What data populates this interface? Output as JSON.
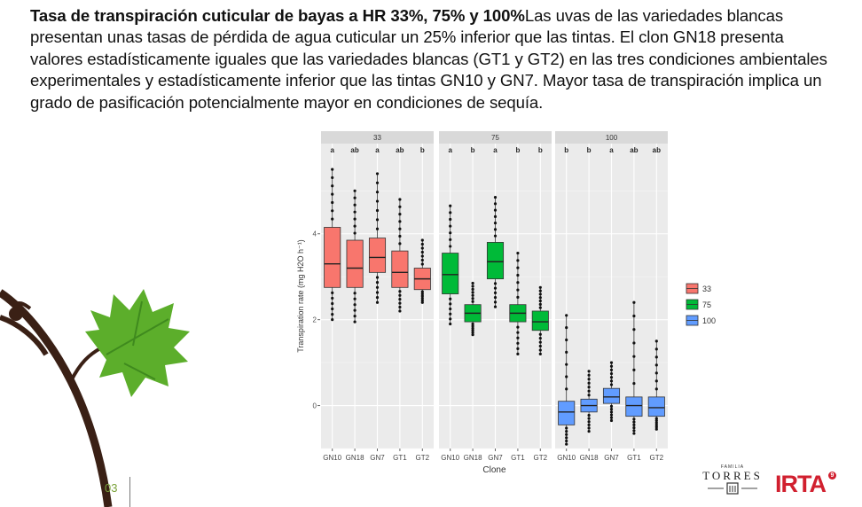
{
  "slide": {
    "title_bold": "Tasa de transpiración cuticular de bayas a HR 33%, 75% y 100%",
    "body": "Las uvas de las variedades blancas presentan unas tasas de pérdida de agua cuticular un 25% inferior que las tintas. El clon GN18 presenta valores estadísticamente iguales que las variedades blancas (GT1 y GT2) en las tres condiciones ambientales experimentales y estadísticamente inferior que las tintas GN10 y GN7. Mayor tasa de transpiración implica un grado de pasificación potencialmente mayor en condiciones de sequía.",
    "slide_number": "03"
  },
  "logos": {
    "torres_small_top": "FAMILIA",
    "torres": "TORRES",
    "irta": "IRTA",
    "irta_superscript": "9"
  },
  "chart_data": {
    "type": "box",
    "xlabel": "Clone",
    "ylabel": "Transpiration rate (mg H2O h⁻¹)",
    "categories": [
      "GN10",
      "GN18",
      "GN7",
      "GT1",
      "GT2"
    ],
    "yticks": [
      0,
      2,
      4
    ],
    "ylim": [
      -1.0,
      6.1
    ],
    "grid": true,
    "legend": {
      "placement": "right",
      "entries": [
        "33",
        "75",
        "100"
      ]
    },
    "colors": {
      "33": "#f8766d",
      "75": "#00ba38",
      "100": "#619cff"
    },
    "panels": [
      {
        "label": "33",
        "letters": [
          "a",
          "ab",
          "a",
          "ab",
          "b"
        ],
        "boxes": [
          {
            "clone": "GN10",
            "min": 2.0,
            "q1": 2.75,
            "median": 3.3,
            "q3": 4.15,
            "max": 5.5
          },
          {
            "clone": "GN18",
            "min": 1.95,
            "q1": 2.75,
            "median": 3.2,
            "q3": 3.85,
            "max": 5.0
          },
          {
            "clone": "GN7",
            "min": 2.4,
            "q1": 3.1,
            "median": 3.45,
            "q3": 3.9,
            "max": 5.4
          },
          {
            "clone": "GT1",
            "min": 2.2,
            "q1": 2.75,
            "median": 3.1,
            "q3": 3.6,
            "max": 4.8
          },
          {
            "clone": "GT2",
            "min": 2.4,
            "q1": 2.7,
            "median": 2.95,
            "q3": 3.2,
            "max": 3.85
          }
        ]
      },
      {
        "label": "75",
        "letters": [
          "a",
          "b",
          "a",
          "b",
          "b"
        ],
        "boxes": [
          {
            "clone": "GN10",
            "min": 1.9,
            "q1": 2.6,
            "median": 3.05,
            "q3": 3.55,
            "max": 4.65
          },
          {
            "clone": "GN18",
            "min": 1.65,
            "q1": 1.95,
            "median": 2.15,
            "q3": 2.35,
            "max": 2.85
          },
          {
            "clone": "GN7",
            "min": 2.3,
            "q1": 2.95,
            "median": 3.35,
            "q3": 3.8,
            "max": 4.85
          },
          {
            "clone": "GT1",
            "min": 1.2,
            "q1": 1.95,
            "median": 2.15,
            "q3": 2.35,
            "max": 3.55
          },
          {
            "clone": "GT2",
            "min": 1.2,
            "q1": 1.75,
            "median": 1.95,
            "q3": 2.2,
            "max": 2.75
          }
        ]
      },
      {
        "label": "100",
        "letters": [
          "b",
          "b",
          "a",
          "ab",
          "ab"
        ],
        "boxes": [
          {
            "clone": "GN10",
            "min": -0.9,
            "q1": -0.45,
            "median": -0.15,
            "q3": 0.1,
            "max": 2.1
          },
          {
            "clone": "GN18",
            "min": -0.6,
            "q1": -0.15,
            "median": 0.0,
            "q3": 0.15,
            "max": 0.8
          },
          {
            "clone": "GN7",
            "min": -0.35,
            "q1": 0.05,
            "median": 0.2,
            "q3": 0.4,
            "max": 1.0
          },
          {
            "clone": "GT1",
            "min": -0.65,
            "q1": -0.25,
            "median": 0.0,
            "q3": 0.2,
            "max": 2.4
          },
          {
            "clone": "GT2",
            "min": -0.55,
            "q1": -0.25,
            "median": -0.05,
            "q3": 0.2,
            "max": 1.5
          }
        ]
      }
    ]
  }
}
